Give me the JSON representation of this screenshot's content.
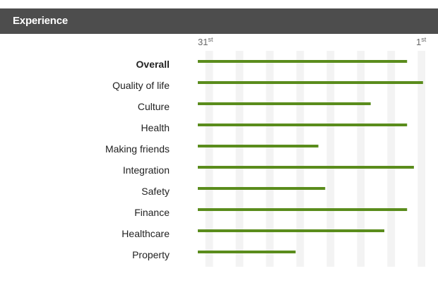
{
  "header": {
    "title": "Experience"
  },
  "rank_axis": {
    "left": {
      "num": "31",
      "suffix": "st"
    },
    "right": {
      "num": "1",
      "suffix": "st"
    }
  },
  "colors": {
    "bar": "#5a8c1c",
    "stripe": "#f3f3f3",
    "header_bg": "#4d4d4d"
  },
  "chart_data": {
    "type": "bar",
    "orientation": "horizontal",
    "title": "Experience",
    "categories": [
      "Overall",
      "Quality of life",
      "Culture",
      "Health",
      "Making friends",
      "Integration",
      "Safety",
      "Finance",
      "Healthcare",
      "Property"
    ],
    "bold_categories": [
      "Overall"
    ],
    "values": [
      0.92,
      0.99,
      0.76,
      0.92,
      0.53,
      0.95,
      0.56,
      0.92,
      0.82,
      0.43
    ],
    "axis": {
      "min_label": "31st",
      "max_label": "1st",
      "range": [
        0,
        1
      ]
    },
    "grid": true,
    "legend": "none"
  }
}
